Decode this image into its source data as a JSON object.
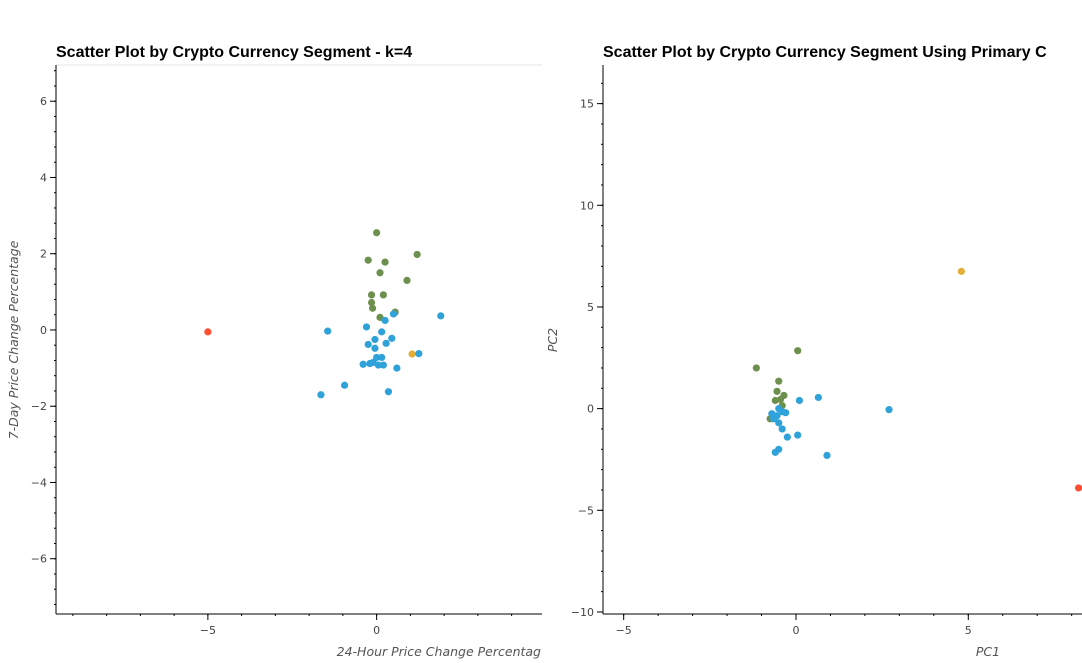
{
  "chart_data": [
    {
      "type": "scatter",
      "title": "Scatter Plot by Crypto Currency Segment - k=4",
      "xlabel": "24-Hour Price Change Percentag",
      "ylabel": "7-Day Price Change Percentage",
      "xlim": [
        -9.5,
        4.9
      ],
      "ylim": [
        -7.45,
        6.95
      ],
      "xticks": [
        -5,
        0
      ],
      "yticks": [
        -6,
        -4,
        -2,
        0,
        2,
        4,
        6
      ],
      "ytick_labels": [
        "−6",
        "−4",
        "−2",
        "0",
        "2",
        "4",
        "6"
      ],
      "xtick_labels": [
        "−5",
        "0"
      ],
      "grid": false,
      "colors": {
        "0": "#30a2da",
        "1": "#6d904f",
        "2": "#e5ae38",
        "3": "#fc4f30"
      },
      "points": [
        {
          "x": -5.0,
          "y": -0.05,
          "c": "3"
        },
        {
          "x": 1.05,
          "y": -0.63,
          "c": "2"
        },
        {
          "x": 0.0,
          "y": 2.55,
          "c": "1"
        },
        {
          "x": -0.25,
          "y": 1.83,
          "c": "1"
        },
        {
          "x": 1.2,
          "y": 1.98,
          "c": "1"
        },
        {
          "x": 0.25,
          "y": 1.78,
          "c": "1"
        },
        {
          "x": 0.1,
          "y": 1.5,
          "c": "1"
        },
        {
          "x": 0.9,
          "y": 1.3,
          "c": "1"
        },
        {
          "x": -0.15,
          "y": 0.92,
          "c": "1"
        },
        {
          "x": 0.2,
          "y": 0.92,
          "c": "1"
        },
        {
          "x": -0.15,
          "y": 0.72,
          "c": "1"
        },
        {
          "x": -0.12,
          "y": 0.57,
          "c": "1"
        },
        {
          "x": 0.55,
          "y": 0.47,
          "c": "1"
        },
        {
          "x": 0.1,
          "y": 0.33,
          "c": "1"
        },
        {
          "x": 1.9,
          "y": 0.37,
          "c": "0"
        },
        {
          "x": -1.45,
          "y": -0.03,
          "c": "0"
        },
        {
          "x": 0.5,
          "y": 0.42,
          "c": "0"
        },
        {
          "x": 0.25,
          "y": 0.25,
          "c": "0"
        },
        {
          "x": -0.3,
          "y": 0.08,
          "c": "0"
        },
        {
          "x": 0.15,
          "y": -0.05,
          "c": "0"
        },
        {
          "x": 0.45,
          "y": -0.22,
          "c": "0"
        },
        {
          "x": -0.05,
          "y": -0.25,
          "c": "0"
        },
        {
          "x": 0.28,
          "y": -0.35,
          "c": "0"
        },
        {
          "x": -0.25,
          "y": -0.38,
          "c": "0"
        },
        {
          "x": -0.05,
          "y": -0.48,
          "c": "0"
        },
        {
          "x": 1.25,
          "y": -0.62,
          "c": "0"
        },
        {
          "x": 0.0,
          "y": -0.72,
          "c": "0"
        },
        {
          "x": 0.15,
          "y": -0.72,
          "c": "0"
        },
        {
          "x": -0.1,
          "y": -0.85,
          "c": "0"
        },
        {
          "x": -0.2,
          "y": -0.88,
          "c": "0"
        },
        {
          "x": -0.4,
          "y": -0.9,
          "c": "0"
        },
        {
          "x": 0.05,
          "y": -0.92,
          "c": "0"
        },
        {
          "x": 0.2,
          "y": -0.92,
          "c": "0"
        },
        {
          "x": 0.6,
          "y": -1.0,
          "c": "0"
        },
        {
          "x": -0.95,
          "y": -1.45,
          "c": "0"
        },
        {
          "x": 0.35,
          "y": -1.62,
          "c": "0"
        },
        {
          "x": -1.65,
          "y": -1.7,
          "c": "0"
        }
      ]
    },
    {
      "type": "scatter",
      "title": "Scatter Plot by Crypto Currency Segment Using Primary C",
      "xlabel": "PC1",
      "ylabel": "PC2",
      "xlim": [
        -5.6,
        8.3
      ],
      "ylim": [
        -10.1,
        16.9
      ],
      "xticks": [
        -5,
        0,
        5
      ],
      "yticks": [
        -10,
        -5,
        0,
        5,
        10,
        15
      ],
      "xtick_labels": [
        "−5",
        "0",
        "5"
      ],
      "ytick_labels": [
        "−10",
        "−5",
        "0",
        "5",
        "10",
        "15"
      ],
      "grid": false,
      "colors": {
        "0": "#30a2da",
        "1": "#6d904f",
        "2": "#e5ae38",
        "3": "#fc4f30"
      },
      "points": [
        {
          "x": 4.8,
          "y": 6.75,
          "c": "2"
        },
        {
          "x": 8.2,
          "y": -3.9,
          "c": "3"
        },
        {
          "x": 0.05,
          "y": 2.85,
          "c": "1"
        },
        {
          "x": -1.15,
          "y": 2.0,
          "c": "1"
        },
        {
          "x": -0.5,
          "y": 1.35,
          "c": "1"
        },
        {
          "x": -0.55,
          "y": 0.85,
          "c": "1"
        },
        {
          "x": -0.35,
          "y": 0.65,
          "c": "1"
        },
        {
          "x": -0.45,
          "y": 0.45,
          "c": "1"
        },
        {
          "x": -0.6,
          "y": 0.4,
          "c": "1"
        },
        {
          "x": -0.4,
          "y": 0.15,
          "c": "1"
        },
        {
          "x": -0.75,
          "y": -0.5,
          "c": "1"
        },
        {
          "x": 0.65,
          "y": 0.55,
          "c": "0"
        },
        {
          "x": 0.1,
          "y": 0.4,
          "c": "0"
        },
        {
          "x": 2.7,
          "y": -0.05,
          "c": "0"
        },
        {
          "x": -0.5,
          "y": 0.0,
          "c": "0"
        },
        {
          "x": -0.4,
          "y": -0.15,
          "c": "0"
        },
        {
          "x": -0.3,
          "y": -0.2,
          "c": "0"
        },
        {
          "x": -0.7,
          "y": -0.25,
          "c": "0"
        },
        {
          "x": -0.55,
          "y": -0.35,
          "c": "0"
        },
        {
          "x": -0.65,
          "y": -0.5,
          "c": "0"
        },
        {
          "x": -0.5,
          "y": -0.7,
          "c": "0"
        },
        {
          "x": -0.4,
          "y": -1.0,
          "c": "0"
        },
        {
          "x": 0.05,
          "y": -1.3,
          "c": "0"
        },
        {
          "x": -0.25,
          "y": -1.4,
          "c": "0"
        },
        {
          "x": -0.5,
          "y": -2.0,
          "c": "0"
        },
        {
          "x": -0.6,
          "y": -2.15,
          "c": "0"
        },
        {
          "x": 0.9,
          "y": -2.3,
          "c": "0"
        }
      ]
    }
  ]
}
